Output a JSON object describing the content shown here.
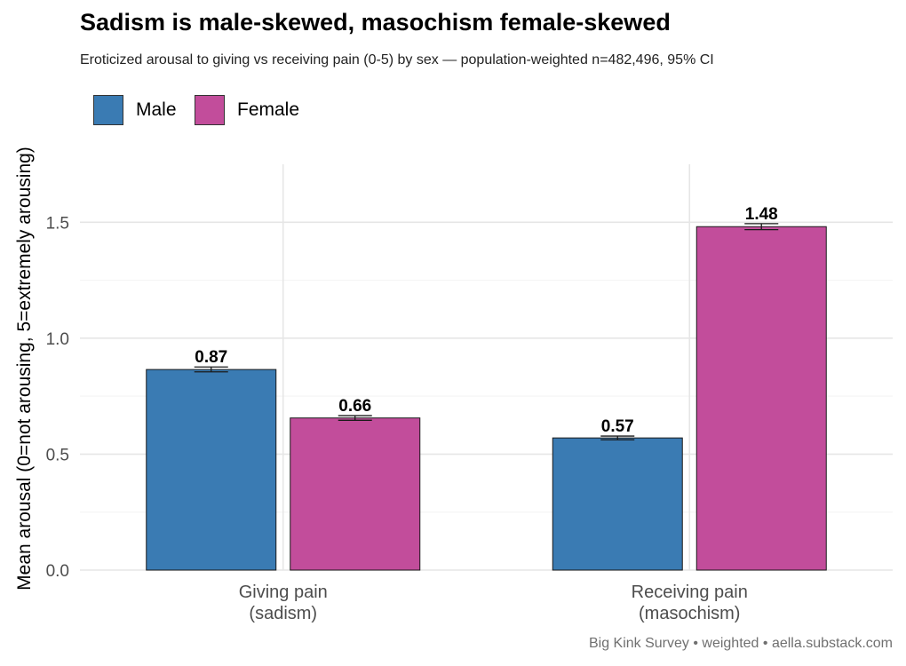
{
  "chart_data": {
    "type": "bar",
    "title": "Sadism is male-skewed, masochism female-skewed",
    "subtitle": "Eroticized arousal to giving vs receiving pain (0-5) by sex — population-weighted n=482,496, 95% CI",
    "ylabel": "Mean arousal (0=not arousing, 5=extremely arousing)",
    "xlabel": "",
    "categories": [
      [
        "Giving pain",
        "(sadism)"
      ],
      [
        "Receiving pain",
        "(masochism)"
      ]
    ],
    "series": [
      {
        "name": "Male",
        "color": "#3a7bb3",
        "values": [
          0.865,
          0.57
        ],
        "ci_low": [
          0.855,
          0.562
        ],
        "ci_high": [
          0.876,
          0.578
        ],
        "labels": [
          "0.87",
          "0.57"
        ]
      },
      {
        "name": "Female",
        "color": "#c24d9b",
        "values": [
          0.656,
          1.481
        ],
        "ci_low": [
          0.646,
          1.468
        ],
        "ci_high": [
          0.666,
          1.494
        ],
        "labels": [
          "0.66",
          "1.48"
        ]
      }
    ],
    "ylim": [
      0,
      1.75
    ],
    "yticks": [
      0.0,
      0.5,
      1.0,
      1.5
    ],
    "ytick_labels": [
      "0.0",
      "0.5",
      "1.0",
      "1.5"
    ],
    "grid": true,
    "legend_position": "top-left",
    "caption": "Big Kink Survey  •  weighted  •  aella.substack.com"
  }
}
